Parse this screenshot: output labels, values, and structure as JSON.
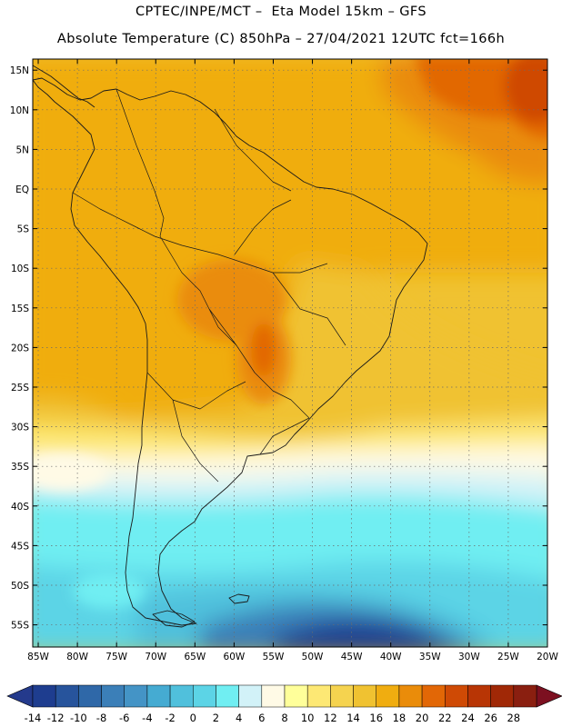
{
  "header": {
    "title_line1": "CPTEC/INPE/MCT –  Eta Model 15km – GFS",
    "title_line2": "Absolute Temperature (C) 850hPa – 27/04/2021 12UTC fct=166h"
  },
  "map": {
    "region": "South America",
    "lat_labels": [
      "15N",
      "10N",
      "5N",
      "EQ",
      "5S",
      "10S",
      "15S",
      "20S",
      "25S",
      "30S",
      "35S",
      "40S",
      "45S",
      "50S",
      "55S"
    ],
    "lon_labels": [
      "85W",
      "80W",
      "75W",
      "70W",
      "65W",
      "60W",
      "55W",
      "50W",
      "45W",
      "40W",
      "35W",
      "30W",
      "25W",
      "20W"
    ],
    "lat_values": [
      15,
      10,
      5,
      0,
      -5,
      -10,
      -15,
      -20,
      -25,
      -30,
      -35,
      -40,
      -45,
      -50,
      -55
    ],
    "lon_values": [
      -85,
      -80,
      -75,
      -70,
      -65,
      -60,
      -55,
      -50,
      -45,
      -40,
      -35,
      -30,
      -25,
      -20
    ],
    "extent": {
      "lon_min": -85.7,
      "lon_max": -20.0,
      "lat_min": -57.8,
      "lat_max": 16.4
    }
  },
  "colorbar": {
    "labels": [
      "-14",
      "-12",
      "-10",
      "-8",
      "-6",
      "-4",
      "-2",
      "0",
      "2",
      "4",
      "6",
      "8",
      "10",
      "12",
      "14",
      "16",
      "18",
      "20",
      "22",
      "24",
      "26",
      "28"
    ],
    "colors": [
      "#1e3d8f",
      "#27549c",
      "#2f68a8",
      "#3b7fb8",
      "#4494c6",
      "#45abd2",
      "#50c0dc",
      "#5cd4e6",
      "#70eef2",
      "#d2f2f8",
      "#fffae6",
      "#ffff9a",
      "#fde874",
      "#f5d34f",
      "#f0c231",
      "#f0ad10",
      "#ea8c0a",
      "#e26706",
      "#cf4a05",
      "#b83505",
      "#a02806",
      "#8a1f10"
    ],
    "under_color": "#243a8c",
    "over_color": "#7c1020"
  }
}
